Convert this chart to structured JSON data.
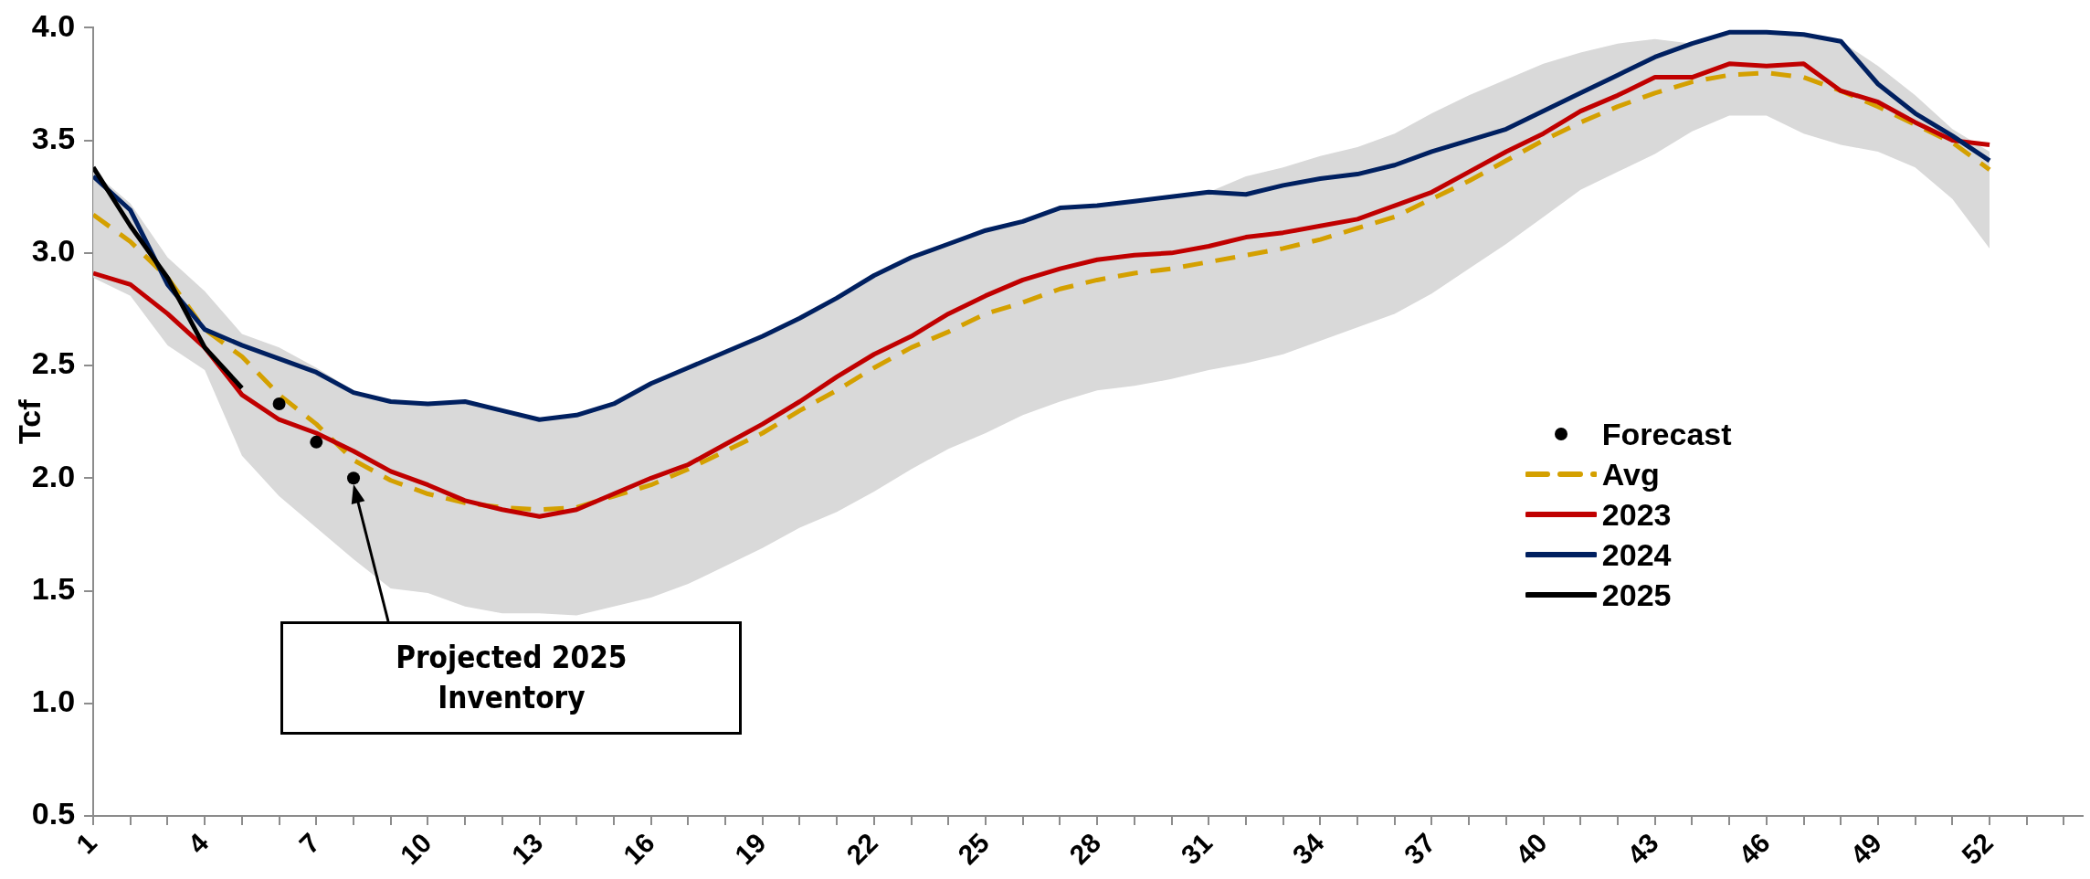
{
  "chart_data": {
    "type": "line",
    "ylabel": "Tcf",
    "x": [
      1,
      2,
      3,
      4,
      5,
      6,
      7,
      8,
      9,
      10,
      11,
      12,
      13,
      14,
      15,
      16,
      17,
      18,
      19,
      20,
      21,
      22,
      23,
      24,
      25,
      26,
      27,
      28,
      29,
      30,
      31,
      32,
      33,
      34,
      35,
      36,
      37,
      38,
      39,
      40,
      41,
      42,
      43,
      44,
      45,
      46,
      47,
      48,
      49,
      50,
      51,
      52
    ],
    "series": [
      {
        "name": "Forecast",
        "type": "scatter",
        "color": "#000000",
        "marker": "circle",
        "x": [
          6,
          7,
          8
        ],
        "values": [
          2.33,
          2.16,
          2.0
        ]
      },
      {
        "name": "Avg",
        "color": "#d4a000",
        "line_style": "dashed",
        "values": [
          3.17,
          3.05,
          2.89,
          2.66,
          2.54,
          2.37,
          2.24,
          2.08,
          1.99,
          1.93,
          1.89,
          1.87,
          1.86,
          1.87,
          1.92,
          1.97,
          2.04,
          2.12,
          2.2,
          2.3,
          2.39,
          2.49,
          2.58,
          2.65,
          2.73,
          2.78,
          2.84,
          2.88,
          2.91,
          2.93,
          2.96,
          2.99,
          3.02,
          3.06,
          3.11,
          3.16,
          3.24,
          3.32,
          3.41,
          3.5,
          3.58,
          3.65,
          3.71,
          3.76,
          3.79,
          3.8,
          3.78,
          3.72,
          3.65,
          3.57,
          3.49,
          3.37
        ],
        "lower": [
          2.89,
          2.81,
          2.59,
          2.48,
          2.1,
          1.92,
          1.78,
          1.64,
          1.51,
          1.49,
          1.43,
          1.4,
          1.4,
          1.39,
          1.43,
          1.47,
          1.53,
          1.61,
          1.69,
          1.78,
          1.85,
          1.94,
          2.04,
          2.13,
          2.2,
          2.28,
          2.34,
          2.39,
          2.41,
          2.44,
          2.48,
          2.51,
          2.55,
          2.61,
          2.67,
          2.73,
          2.82,
          2.93,
          3.04,
          3.16,
          3.28,
          3.36,
          3.44,
          3.54,
          3.61,
          3.61,
          3.53,
          3.48,
          3.45,
          3.38,
          3.24,
          3.02
        ],
        "upper": [
          3.36,
          3.22,
          2.98,
          2.83,
          2.64,
          2.58,
          2.49,
          2.39,
          2.34,
          2.33,
          2.34,
          2.3,
          2.26,
          2.28,
          2.33,
          2.42,
          2.49,
          2.56,
          2.63,
          2.71,
          2.8,
          2.9,
          2.98,
          3.04,
          3.1,
          3.14,
          3.2,
          3.21,
          3.23,
          3.25,
          3.27,
          3.34,
          3.38,
          3.43,
          3.47,
          3.53,
          3.62,
          3.7,
          3.77,
          3.84,
          3.89,
          3.93,
          3.95,
          3.93,
          3.98,
          3.98,
          3.97,
          3.94,
          3.83,
          3.7,
          3.55,
          3.45
        ]
      },
      {
        "name": "2023",
        "color": "#c00000",
        "line_style": "solid",
        "values": [
          2.91,
          2.86,
          2.73,
          2.58,
          2.37,
          2.26,
          2.2,
          2.12,
          2.03,
          1.97,
          1.9,
          1.86,
          1.83,
          1.86,
          1.93,
          2.0,
          2.06,
          2.15,
          2.24,
          2.34,
          2.45,
          2.55,
          2.63,
          2.73,
          2.81,
          2.88,
          2.93,
          2.97,
          2.99,
          3.0,
          3.03,
          3.07,
          3.09,
          3.12,
          3.15,
          3.21,
          3.27,
          3.36,
          3.45,
          3.53,
          3.63,
          3.7,
          3.78,
          3.78,
          3.84,
          3.83,
          3.84,
          3.72,
          3.67,
          3.58,
          3.5,
          3.48
        ]
      },
      {
        "name": "2024",
        "color": "#002060",
        "line_style": "solid",
        "values": [
          3.34,
          3.19,
          2.86,
          2.66,
          2.59,
          2.53,
          2.47,
          2.38,
          2.34,
          2.33,
          2.34,
          2.3,
          2.26,
          2.28,
          2.33,
          2.42,
          2.49,
          2.56,
          2.63,
          2.71,
          2.8,
          2.9,
          2.98,
          3.04,
          3.1,
          3.14,
          3.2,
          3.21,
          3.23,
          3.25,
          3.27,
          3.26,
          3.3,
          3.33,
          3.35,
          3.39,
          3.45,
          3.5,
          3.55,
          3.63,
          3.71,
          3.79,
          3.87,
          3.93,
          3.98,
          3.98,
          3.97,
          3.94,
          3.75,
          3.62,
          3.52,
          3.41
        ]
      },
      {
        "name": "2025",
        "color": "#000000",
        "line_style": "solid",
        "x": [
          1,
          2,
          3,
          4,
          5
        ],
        "values": [
          3.38,
          3.12,
          2.89,
          2.58,
          2.4
        ]
      }
    ],
    "xlim": [
      1,
      54.5
    ],
    "xticks": [
      1,
      {
        "value": 2,
        "label": null
      },
      {
        "value": 3,
        "label": null
      },
      4,
      {
        "value": 5,
        "label": null
      },
      {
        "value": 6,
        "label": null
      },
      7,
      {
        "value": 8,
        "label": null
      },
      {
        "value": 9,
        "label": null
      },
      10,
      {
        "value": 11,
        "label": null
      },
      {
        "value": 12,
        "label": null
      },
      13,
      {
        "value": 14,
        "label": null
      },
      {
        "value": 15,
        "label": null
      },
      16,
      {
        "value": 17,
        "label": null
      },
      {
        "value": 18,
        "label": null
      },
      19,
      {
        "value": 20,
        "label": null
      },
      {
        "value": 21,
        "label": null
      },
      22,
      {
        "value": 23,
        "label": null
      },
      {
        "value": 24,
        "label": null
      },
      25,
      {
        "value": 26,
        "label": null
      },
      {
        "value": 27,
        "label": null
      },
      28,
      {
        "value": 29,
        "label": null
      },
      {
        "value": 30,
        "label": null
      },
      31,
      {
        "value": 32,
        "label": null
      },
      {
        "value": 33,
        "label": null
      },
      34,
      {
        "value": 35,
        "label": null
      },
      {
        "value": 36,
        "label": null
      },
      37,
      {
        "value": 38,
        "label": null
      },
      {
        "value": 39,
        "label": null
      },
      40,
      {
        "value": 41,
        "label": null
      },
      {
        "value": 42,
        "label": null
      },
      43,
      {
        "value": 44,
        "label": null
      },
      {
        "value": 45,
        "label": null
      },
      46,
      {
        "value": 47,
        "label": null
      },
      {
        "value": 48,
        "label": null
      },
      49,
      {
        "value": 50,
        "label": null
      },
      {
        "value": 51,
        "label": null
      },
      52,
      {
        "value": 53,
        "label": null
      },
      {
        "value": 54,
        "label": null
      }
    ],
    "ylim": [
      0.5,
      4.0
    ],
    "yticks": [
      {
        "value": 0.5,
        "label": "0.5"
      },
      {
        "value": 1.0,
        "label": "1.0"
      },
      {
        "value": 1.5,
        "label": "1.5"
      },
      {
        "value": 2.0,
        "label": "2.0"
      },
      {
        "value": 2.5,
        "label": "2.5"
      },
      {
        "value": 3.0,
        "label": "3.0"
      },
      {
        "value": 3.5,
        "label": "3.5"
      },
      {
        "value": 4.0,
        "label": "4.0"
      }
    ],
    "grid": false,
    "legend": "right",
    "annotations": [
      "Projected 2025 Inventory"
    ]
  }
}
